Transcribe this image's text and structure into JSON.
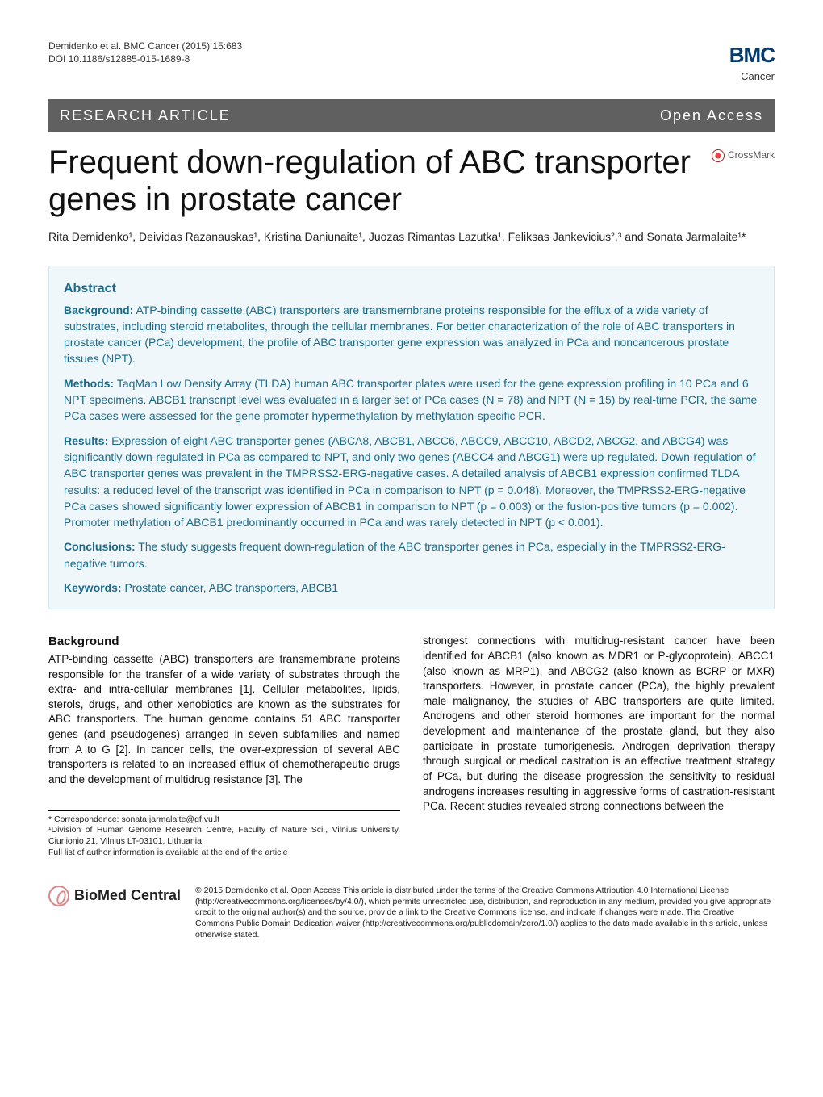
{
  "header": {
    "citation": "Demidenko et al. BMC Cancer (2015) 15:683",
    "doi": "DOI 10.1186/s12885-015-1689-8",
    "journal_logo_top": "BMC",
    "journal_logo_bottom": "Cancer"
  },
  "banner": {
    "left": "RESEARCH ARTICLE",
    "right": "Open Access"
  },
  "title": "Frequent down-regulation of ABC transporter genes in prostate cancer",
  "crossmark_label": "CrossMark",
  "authors_html": "Rita Demidenko¹, Deividas Razanauskas¹, Kristina Daniunaite¹, Juozas Rimantas Lazutka¹, Feliksas Jankevicius²,³ and Sonata Jarmalaite¹*",
  "abstract": {
    "heading": "Abstract",
    "background_label": "Background:",
    "background_text": " ATP-binding cassette (ABC) transporters are transmembrane proteins responsible for the efflux of a wide variety of substrates, including steroid metabolites, through the cellular membranes. For better characterization of the role of ABC transporters in prostate cancer (PCa) development, the profile of ABC transporter gene expression was analyzed in PCa and noncancerous prostate tissues (NPT).",
    "methods_label": "Methods:",
    "methods_text": " TaqMan Low Density Array (TLDA) human ABC transporter plates were used for the gene expression profiling in 10 PCa and 6 NPT specimens. ABCB1 transcript level was evaluated in a larger set of PCa cases (N = 78) and NPT (N = 15) by real-time PCR, the same PCa cases were assessed for the gene promoter hypermethylation by methylation-specific PCR.",
    "results_label": "Results:",
    "results_text_1": " Expression of eight ABC transporter genes (ABCA8, ABCB1, ABCC6, ABCC9, ABCC10, ABCD2, ABCG2, and ABCG4) was significantly down-regulated in PCa as compared to NPT, and only two genes (ABCC4 and ABCG1) were up-regulated. Down-regulation of ABC transporter genes was prevalent in the TMPRSS2-ERG-negative cases. A detailed analysis of ABCB1 expression confirmed TLDA results: a reduced level of the transcript was identified in PCa in comparison to NPT (p = 0.048). Moreover, the TMPRSS2-ERG-negative PCa cases showed significantly lower expression of ABCB1 in comparison to NPT (p = 0.003) or the fusion-positive tumors (p = 0.002). Promoter methylation of ABCB1 predominantly occurred in PCa and was rarely detected in NPT (p < 0.001).",
    "conclusions_label": "Conclusions:",
    "conclusions_text": " The study suggests frequent down-regulation of the ABC transporter genes in PCa, especially in the TMPRSS2-ERG-negative tumors.",
    "keywords_label": "Keywords:",
    "keywords_text": " Prostate cancer, ABC transporters, ABCB1"
  },
  "body": {
    "background_heading": "Background",
    "col1": "ATP-binding cassette (ABC) transporters are transmembrane proteins responsible for the transfer of a wide variety of substrates through the extra- and intra-cellular membranes [1]. Cellular metabolites, lipids, sterols, drugs, and other xenobiotics are known as the substrates for ABC transporters. The human genome contains 51 ABC transporter genes (and pseudogenes) arranged in seven subfamilies and named from A to G [2]. In cancer cells, the over-expression of several ABC transporters is related to an increased efflux of chemotherapeutic drugs and the development of multidrug resistance [3]. The",
    "col2": "strongest connections with multidrug-resistant cancer have been identified for ABCB1 (also known as MDR1 or P-glycoprotein), ABCC1 (also known as MRP1), and ABCG2 (also known as BCRP or MXR) transporters. However, in prostate cancer (PCa), the highly prevalent male malignancy, the studies of ABC transporters are quite limited. Androgens and other steroid hormones are important for the normal development and maintenance of the prostate gland, but they also participate in prostate tumorigenesis. Androgen deprivation therapy through surgical or medical castration is an effective treatment strategy of PCa, but during the disease progression the sensitivity to residual androgens increases resulting in aggressive forms of castration-resistant PCa. Recent studies revealed strong connections between the"
  },
  "correspondence": {
    "line1": "* Correspondence: sonata.jarmalaite@gf.vu.lt",
    "line2": "¹Division of Human Genome Research Centre, Faculty of Nature Sci., Vilnius University, Ciurlionio 21, Vilnius LT-03101, Lithuania",
    "line3": "Full list of author information is available at the end of the article"
  },
  "footer": {
    "logo_text": "BioMed Central",
    "license": "© 2015 Demidenko et al. Open Access This article is distributed under the terms of the Creative Commons Attribution 4.0 International License (http://creativecommons.org/licenses/by/4.0/), which permits unrestricted use, distribution, and reproduction in any medium, provided you give appropriate credit to the original author(s) and the source, provide a link to the Creative Commons license, and indicate if changes were made. The Creative Commons Public Domain Dedication waiver (http://creativecommons.org/publicdomain/zero/1.0/) applies to the data made available in this article, unless otherwise stated."
  },
  "colors": {
    "banner_bg": "#606060",
    "abstract_bg": "#f0f7fb",
    "abstract_border": "#cfe4ef",
    "abstract_text": "#1a6a88"
  }
}
